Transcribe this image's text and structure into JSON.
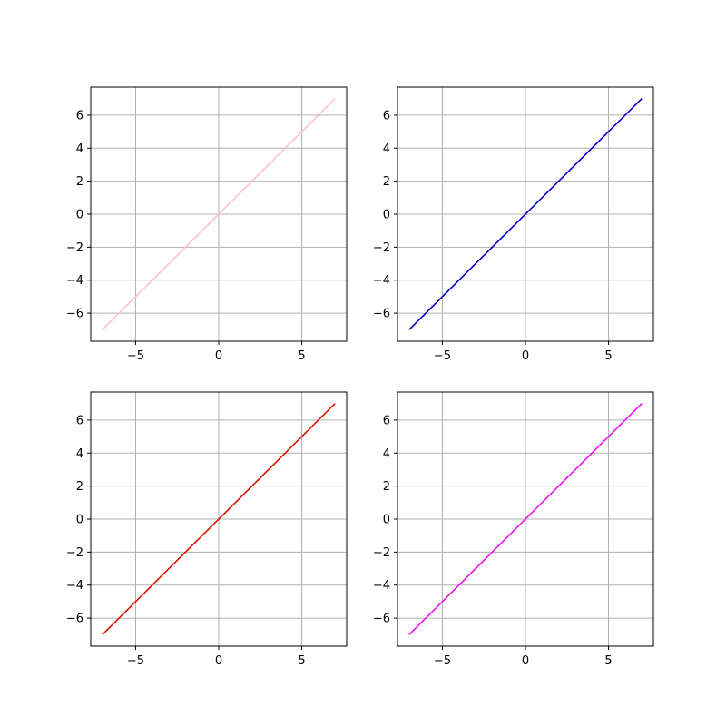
{
  "figure": {
    "background": "#ffffff",
    "axes_color": "#000000",
    "grid_color": "#b0b0b0"
  },
  "chart_data": [
    {
      "type": "line",
      "panel": "top-left",
      "title": "",
      "xlabel": "",
      "ylabel": "",
      "xlim": [
        -7.7,
        7.7
      ],
      "ylim": [
        -7.7,
        7.7
      ],
      "xticks": [
        -5,
        0,
        5
      ],
      "yticks": [
        -6,
        -4,
        -2,
        0,
        2,
        4,
        6
      ],
      "grid": true,
      "legend": "none",
      "series": [
        {
          "color": "#ffc0cb",
          "x": [
            -7,
            7
          ],
          "y": [
            -7,
            7
          ]
        }
      ]
    },
    {
      "type": "line",
      "panel": "top-right",
      "title": "",
      "xlabel": "",
      "ylabel": "",
      "xlim": [
        -7.7,
        7.7
      ],
      "ylim": [
        -7.7,
        7.7
      ],
      "xticks": [
        -5,
        0,
        5
      ],
      "yticks": [
        -6,
        -4,
        -2,
        0,
        2,
        4,
        6
      ],
      "grid": true,
      "legend": "none",
      "series": [
        {
          "color": "#0000cd",
          "x": [
            -7,
            7
          ],
          "y": [
            -7,
            7
          ]
        }
      ]
    },
    {
      "type": "line",
      "panel": "bottom-left",
      "title": "",
      "xlabel": "",
      "ylabel": "",
      "xlim": [
        -7.7,
        7.7
      ],
      "ylim": [
        -7.7,
        7.7
      ],
      "xticks": [
        -5,
        0,
        5
      ],
      "yticks": [
        -6,
        -4,
        -2,
        0,
        2,
        4,
        6
      ],
      "grid": true,
      "legend": "none",
      "series": [
        {
          "color": "#dd1100",
          "x": [
            -7,
            7
          ],
          "y": [
            -7,
            7
          ]
        }
      ]
    },
    {
      "type": "line",
      "panel": "bottom-right",
      "title": "",
      "xlabel": "",
      "ylabel": "",
      "xlim": [
        -7.7,
        7.7
      ],
      "ylim": [
        -7.7,
        7.7
      ],
      "xticks": [
        -5,
        0,
        5
      ],
      "yticks": [
        -6,
        -4,
        -2,
        0,
        2,
        4,
        6
      ],
      "grid": true,
      "legend": "none",
      "series": [
        {
          "color": "#ee10ee",
          "x": [
            -7,
            7
          ],
          "y": [
            -7,
            7
          ]
        }
      ]
    }
  ]
}
